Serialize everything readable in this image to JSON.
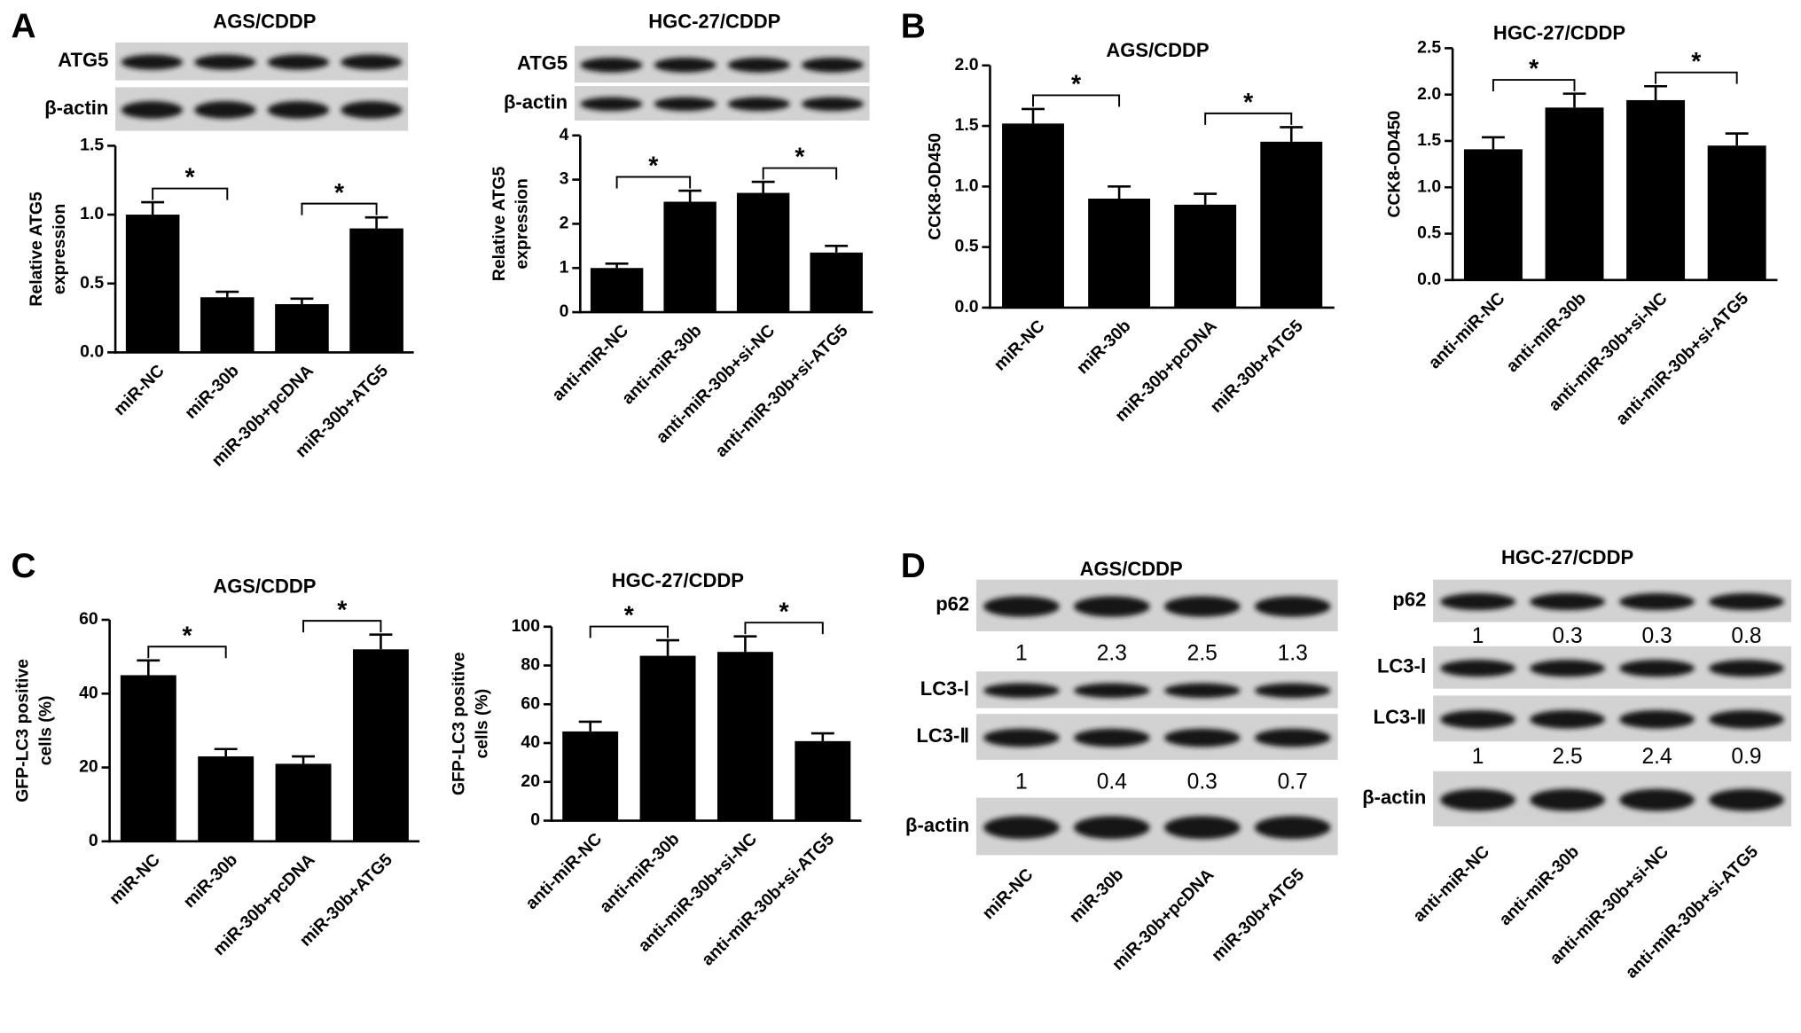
{
  "panel_labels": [
    "A",
    "B",
    "C",
    "D"
  ],
  "chart_data": [
    {
      "type": "bar",
      "title": "AGS/CDDP",
      "ylabel": [
        "Relative ATG5",
        "expression"
      ],
      "color": "#000000",
      "categories": [
        "miR-NC",
        "miR-30b",
        "miR-30b+pcDNA",
        "miR-30b+ATG5"
      ],
      "values": [
        1.0,
        0.4,
        0.35,
        0.9
      ],
      "errors": [
        0.09,
        0.04,
        0.04,
        0.08
      ],
      "ylim": [
        0,
        1.5
      ],
      "yticks": [
        {
          "value": 0,
          "label": "0.0"
        },
        0.5,
        {
          "value": 1,
          "label": "1.0"
        },
        1.5
      ],
      "significance": [
        {
          "between": [
            0,
            1
          ],
          "label": "*"
        },
        {
          "between": [
            2,
            3
          ],
          "label": "*"
        }
      ]
    },
    {
      "type": "bar",
      "title": "HGC-27/CDDP",
      "ylabel": [
        "Relative ATG5",
        "expression"
      ],
      "color": "#000000",
      "categories": [
        "anti-miR-NC",
        "anti-miR-30b",
        "anti-miR-30b+si-NC",
        "anti-miR-30b+si-ATG5"
      ],
      "values": [
        1.0,
        2.5,
        2.7,
        1.35
      ],
      "errors": [
        0.1,
        0.25,
        0.25,
        0.15
      ],
      "ylim": [
        0,
        4
      ],
      "yticks": [
        0,
        1,
        2,
        3,
        4
      ],
      "significance": [
        {
          "between": [
            0,
            1
          ],
          "label": "*"
        },
        {
          "between": [
            2,
            3
          ],
          "label": "*"
        }
      ]
    },
    {
      "type": "bar",
      "title": "AGS/CDDP",
      "ylabel": "CCK8-OD450",
      "color": "#000000",
      "categories": [
        "miR-NC",
        "miR-30b",
        "miR-30b+pcDNA",
        "miR-30b+ATG5"
      ],
      "values": [
        1.52,
        0.9,
        0.85,
        1.37
      ],
      "errors": [
        0.12,
        0.1,
        0.09,
        0.12
      ],
      "ylim": [
        0,
        2
      ],
      "yticks": [
        {
          "value": 0,
          "label": "0.0"
        },
        0.5,
        {
          "value": 1,
          "label": "1.0"
        },
        1.5,
        {
          "value": 2,
          "label": "2.0"
        }
      ],
      "significance": [
        {
          "between": [
            0,
            1
          ],
          "label": "*"
        },
        {
          "between": [
            2,
            3
          ],
          "label": "*"
        }
      ]
    },
    {
      "type": "bar",
      "title": "HGC-27/CDDP",
      "ylabel": "CCK8-OD450",
      "color": "#000000",
      "categories": [
        "anti-miR-NC",
        "anti-miR-30b",
        "anti-miR-30b+si-NC",
        "anti-miR-30b+si-ATG5"
      ],
      "values": [
        1.41,
        1.86,
        1.94,
        1.45
      ],
      "errors": [
        0.13,
        0.15,
        0.15,
        0.13
      ],
      "ylim": [
        0,
        2.5
      ],
      "yticks": [
        {
          "value": 0,
          "label": "0.0"
        },
        0.5,
        {
          "value": 1,
          "label": "1.0"
        },
        1.5,
        {
          "value": 2,
          "label": "2.0"
        },
        2.5
      ],
      "significance": [
        {
          "between": [
            0,
            1
          ],
          "label": "*"
        },
        {
          "between": [
            2,
            3
          ],
          "label": "*"
        }
      ]
    },
    {
      "type": "bar",
      "title": "AGS/CDDP",
      "ylabel": [
        "GFP-LC3 positive",
        "cells (%)"
      ],
      "color": "#000000",
      "categories": [
        "miR-NC",
        "miR-30b",
        "miR-30b+pcDNA",
        "miR-30b+ATG5"
      ],
      "values": [
        45,
        23,
        21,
        52
      ],
      "errors": [
        4,
        2,
        2,
        4
      ],
      "ylim": [
        0,
        60
      ],
      "yticks": [
        0,
        20,
        40,
        60
      ],
      "significance": [
        {
          "between": [
            0,
            1
          ],
          "label": "*"
        },
        {
          "between": [
            2,
            3
          ],
          "label": "*"
        }
      ]
    },
    {
      "type": "bar",
      "title": "HGC-27/CDDP",
      "ylabel": [
        "GFP-LC3 positive",
        "cells (%)"
      ],
      "color": "#000000",
      "categories": [
        "anti-miR-NC",
        "anti-miR-30b",
        "anti-miR-30b+si-NC",
        "anti-miR-30b+si-ATG5"
      ],
      "values": [
        46,
        85,
        87,
        41
      ],
      "errors": [
        5,
        8,
        8,
        4
      ],
      "ylim": [
        0,
        100
      ],
      "yticks": [
        0,
        20,
        40,
        60,
        80,
        100
      ],
      "significance": [
        {
          "between": [
            0,
            1
          ],
          "label": "*"
        },
        {
          "between": [
            2,
            3
          ],
          "label": "*"
        }
      ]
    }
  ],
  "blots": [
    {
      "rows": [
        {
          "label": "ATG5"
        },
        {
          "label": "β-actin"
        }
      ]
    },
    {
      "rows": [
        {
          "label": "ATG5"
        },
        {
          "label": "β-actin"
        }
      ]
    },
    {
      "title": "AGS/CDDP",
      "rows": [
        {
          "label": "p62",
          "quantification": [
            1,
            2.3,
            2.5,
            1.3
          ]
        },
        {
          "label": "LC3-Ⅰ"
        },
        {
          "label": "LC3-Ⅱ",
          "quantification": [
            1,
            0.4,
            0.3,
            0.7
          ]
        },
        {
          "label": "β-actin"
        }
      ],
      "categories": [
        "miR-NC",
        "miR-30b",
        "miR-30b+pcDNA",
        "miR-30b+ATG5"
      ]
    },
    {
      "title": "HGC-27/CDDP",
      "rows": [
        {
          "label": "p62",
          "quantification": [
            1,
            0.3,
            0.3,
            0.8
          ]
        },
        {
          "label": "LC3-Ⅰ"
        },
        {
          "label": "LC3-Ⅱ",
          "quantification": [
            1,
            2.5,
            2.4,
            0.9
          ]
        },
        {
          "label": "β-actin"
        }
      ],
      "categories": [
        "anti-miR-NC",
        "anti-miR-30b",
        "anti-miR-30b+si-NC",
        "anti-miR-30b+si-ATG5"
      ]
    }
  ]
}
